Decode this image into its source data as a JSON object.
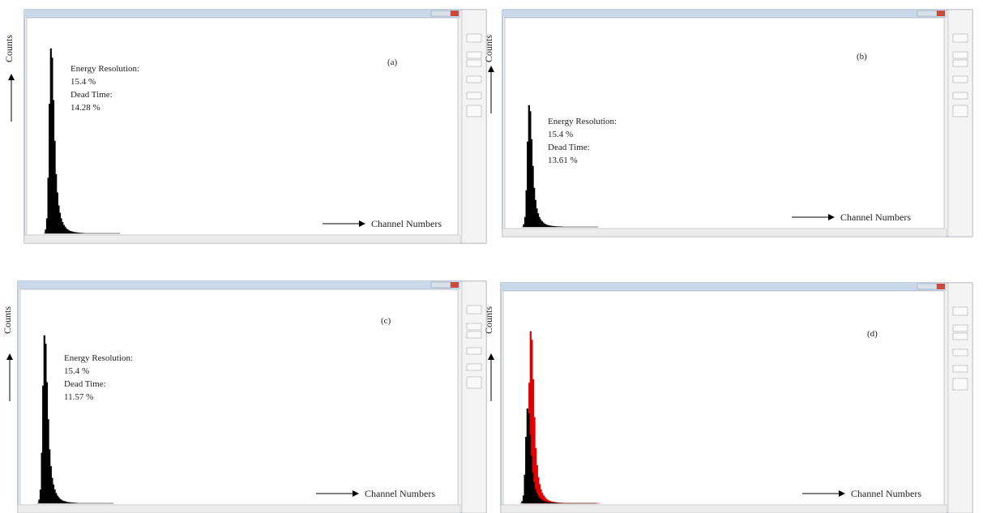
{
  "panels": [
    {
      "label": "(a)",
      "y_axis": "Counts",
      "x_axis": "Channel Numbers",
      "annotation": [
        "Energy Resolution:",
        "15.4 %",
        "Dead Time:",
        "14.28 %"
      ]
    },
    {
      "label": "(b)",
      "y_axis": "Counts",
      "x_axis": "Channel Numbers",
      "annotation": [
        "Energy Resolution:",
        "15.4 %",
        "Dead Time:",
        "13.61 %"
      ]
    },
    {
      "label": "(c)",
      "y_axis": "Counts",
      "x_axis": "Channel Numbers",
      "annotation": [
        "Energy Resolution:",
        "15.4 %",
        "Dead Time:",
        "11.57 %"
      ]
    },
    {
      "label": "(d)",
      "y_axis": "Counts",
      "x_axis": "Channel Numbers"
    }
  ]
}
